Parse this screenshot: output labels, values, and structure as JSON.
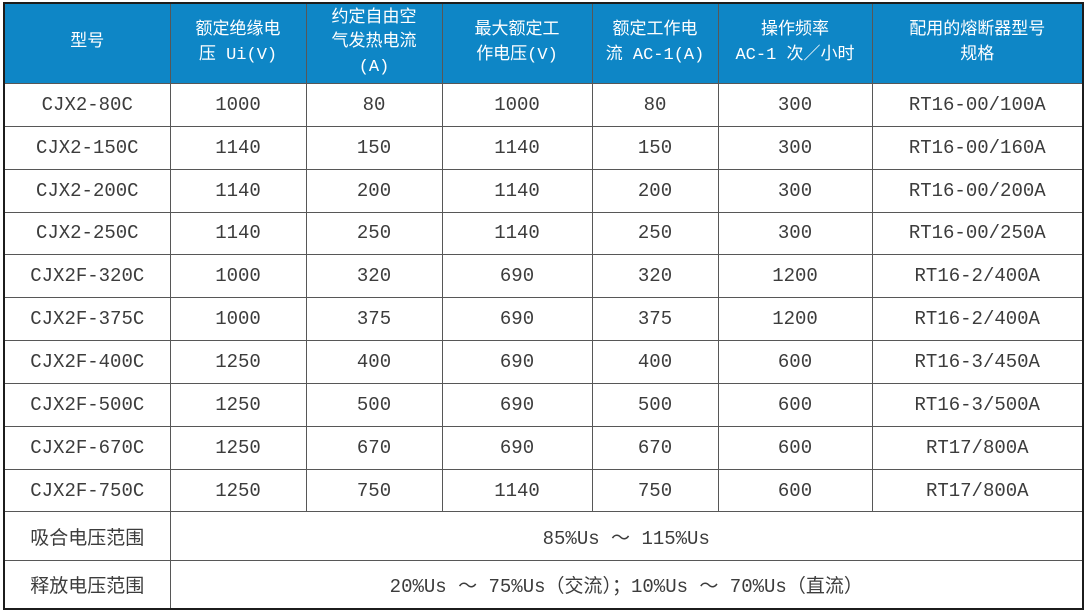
{
  "colors": {
    "header_bg": "#0e86c6",
    "header_text": "#ffffff",
    "body_text": "#3c3c3c",
    "grid_line": "#575757",
    "outer_border": "#1c1c1c",
    "cell_bg": "#ffffff"
  },
  "table": {
    "columns": [
      "型号",
      "额定绝缘电\n压 Ui(V)",
      "约定自由空\n气发热电流\n(A)",
      "最大额定工\n作电压(V)",
      "额定工作电\n流 AC-1(A)",
      "操作频率\nAC-1 次／小时",
      "配用的熔断器型号\n规格"
    ],
    "rows": [
      [
        "CJX2-80C",
        "1000",
        "80",
        "1000",
        "80",
        "300",
        "RT16-00/100A"
      ],
      [
        "CJX2-150C",
        "1140",
        "150",
        "1140",
        "150",
        "300",
        "RT16-00/160A"
      ],
      [
        "CJX2-200C",
        "1140",
        "200",
        "1140",
        "200",
        "300",
        "RT16-00/200A"
      ],
      [
        "CJX2-250C",
        "1140",
        "250",
        "1140",
        "250",
        "300",
        "RT16-00/250A"
      ],
      [
        "CJX2F-320C",
        "1000",
        "320",
        "690",
        "320",
        "1200",
        "RT16-2/400A"
      ],
      [
        "CJX2F-375C",
        "1000",
        "375",
        "690",
        "375",
        "1200",
        "RT16-2/400A"
      ],
      [
        "CJX2F-400C",
        "1250",
        "400",
        "690",
        "400",
        "600",
        "RT16-3/450A"
      ],
      [
        "CJX2F-500C",
        "1250",
        "500",
        "690",
        "500",
        "600",
        "RT16-3/500A"
      ],
      [
        "CJX2F-670C",
        "1250",
        "670",
        "690",
        "670",
        "600",
        "RT17/800A"
      ],
      [
        "CJX2F-750C",
        "1250",
        "750",
        "1140",
        "750",
        "600",
        "RT17/800A"
      ]
    ],
    "footer_rows": [
      {
        "label": "吸合电压范围",
        "value": "85%Us ～ 115%Us"
      },
      {
        "label": "释放电压范围",
        "value": "20%Us ～ 75%Us（交流）；10%Us ～ 70%Us（直流）"
      }
    ]
  }
}
